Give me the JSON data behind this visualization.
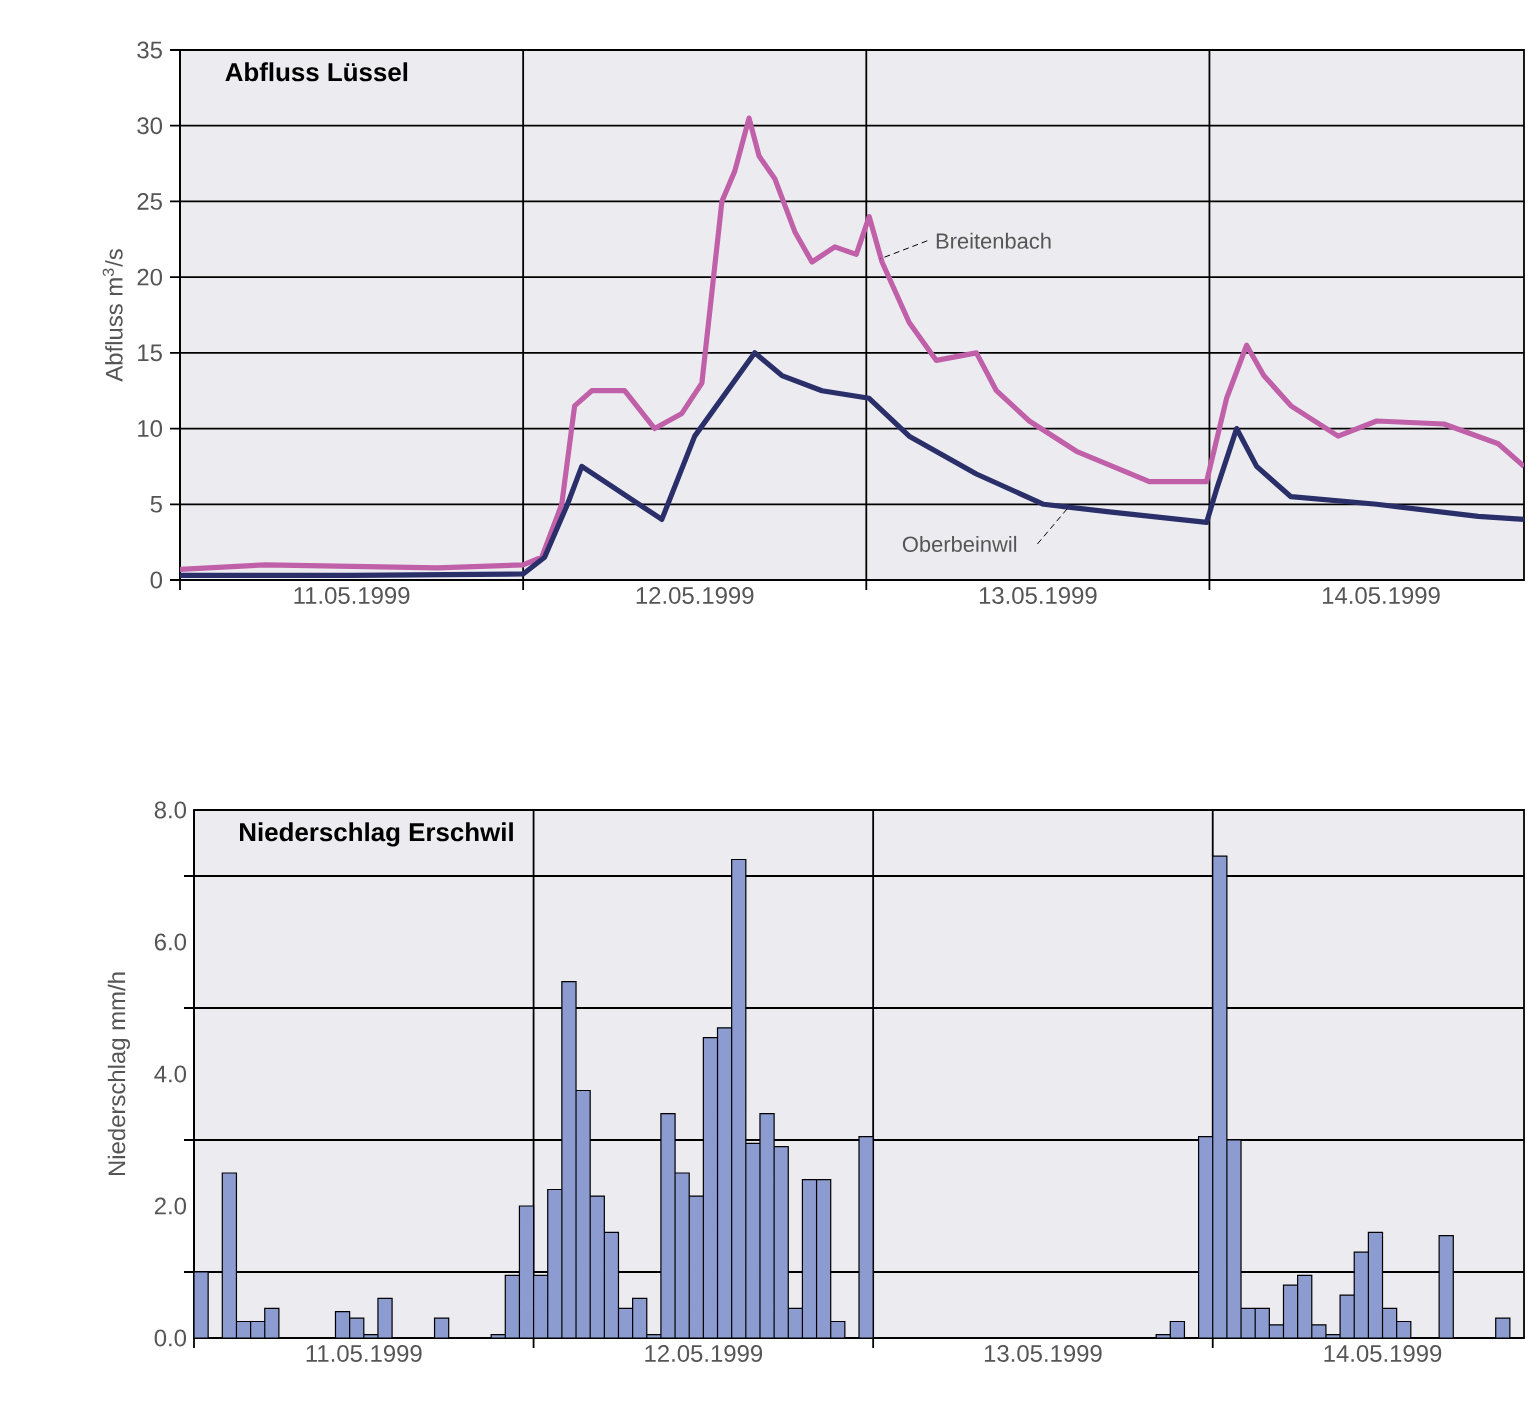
{
  "chart_data": [
    {
      "type": "line",
      "title": "Abfluss Lüssel",
      "ylabel": "Abfluss m$^{3}$/s",
      "xlim": [
        "1999-05-11T00:00",
        "1999-05-14T22:00"
      ],
      "ylim": [
        0,
        35
      ],
      "yticks": [
        0,
        5,
        10,
        15,
        20,
        25,
        30,
        35
      ],
      "grid": true,
      "line_style": "solid",
      "marker": "none",
      "xticks": [
        {
          "value": "1999-05-11T00:00",
          "label": null
        },
        {
          "value": "1999-05-11T12:00",
          "label": "11.05.1999"
        },
        {
          "value": "1999-05-12T00:00",
          "label": null
        },
        {
          "value": "1999-05-12T12:00",
          "label": "12.05.1999"
        },
        {
          "value": "1999-05-13T00:00",
          "label": null
        },
        {
          "value": "1999-05-13T12:00",
          "label": "13.05.1999"
        },
        {
          "value": "1999-05-14T00:00",
          "label": null
        },
        {
          "value": "1999-05-14T12:00",
          "label": "14.05.1999"
        }
      ],
      "series": [
        {
          "name": "Breitenbach",
          "color": "#c060a8",
          "x": [
            "1999-05-11T00:00",
            "1999-05-11T06:00",
            "1999-05-11T12:00",
            "1999-05-11T18:00",
            "1999-05-12T00:00",
            "1999-05-12T01:18",
            "1999-05-12T02:42",
            "1999-05-12T03:36",
            "1999-05-12T04:48",
            "1999-05-12T07:06",
            "1999-05-12T09:12",
            "1999-05-12T11:06",
            "1999-05-12T12:30",
            "1999-05-12T13:54",
            "1999-05-12T14:48",
            "1999-05-12T15:48",
            "1999-05-12T16:30",
            "1999-05-12T17:36",
            "1999-05-12T19:00",
            "1999-05-12T20:12",
            "1999-05-12T21:48",
            "1999-05-12T23:18",
            "1999-05-13T00:12",
            "1999-05-13T01:06",
            "1999-05-13T03:00",
            "1999-05-13T04:54",
            "1999-05-13T07:42",
            "1999-05-13T09:06",
            "1999-05-13T11:24",
            "1999-05-13T14:42",
            "1999-05-13T19:48",
            "1999-05-13T23:48",
            "1999-05-14T01:12",
            "1999-05-14T02:36",
            "1999-05-14T03:48",
            "1999-05-14T05:42",
            "1999-05-14T09:00",
            "1999-05-14T11:42",
            "1999-05-14T16:24",
            "1999-05-14T20:12",
            "1999-05-14T22:00"
          ],
          "values": [
            0.7,
            1.0,
            0.9,
            0.8,
            1.0,
            1.5,
            5,
            11.5,
            12.5,
            12.5,
            10,
            11,
            13,
            25,
            27,
            30.5,
            28,
            26.5,
            23,
            21,
            22,
            21.5,
            24,
            21,
            17,
            14.5,
            15,
            12.5,
            10.5,
            8.5,
            6.5,
            6.5,
            12,
            15.5,
            13.5,
            11.5,
            9.5,
            10.5,
            10.3,
            9,
            7.5
          ]
        },
        {
          "name": "Oberbeinwil",
          "color": "#2a2f6a",
          "x": [
            "1999-05-11T00:00",
            "1999-05-11T12:00",
            "1999-05-12T00:00",
            "1999-05-12T01:30",
            "1999-05-12T03:06",
            "1999-05-12T04:06",
            "1999-05-12T09:42",
            "1999-05-12T12:00",
            "1999-05-12T16:12",
            "1999-05-12T18:06",
            "1999-05-12T20:54",
            "1999-05-13T00:12",
            "1999-05-13T03:00",
            "1999-05-13T07:42",
            "1999-05-13T12:24",
            "1999-05-13T17:00",
            "1999-05-13T23:48",
            "1999-05-14T00:30",
            "1999-05-14T01:54",
            "1999-05-14T03:18",
            "1999-05-14T05:42",
            "1999-05-14T11:42",
            "1999-05-14T18:48",
            "1999-05-14T22:00"
          ],
          "values": [
            0.3,
            0.3,
            0.4,
            1.5,
            5,
            7.5,
            4,
            9.5,
            15,
            13.5,
            12.5,
            12,
            9.5,
            7,
            5,
            4.5,
            3.8,
            6,
            10,
            7.5,
            5.5,
            5,
            4.2,
            4
          ]
        }
      ]
    },
    {
      "type": "bar",
      "title": "Niederschlag Erschwil",
      "ylabel": "Niederschlag mm/h",
      "xlim": [
        "1999-05-11T00:00",
        "1999-05-14T22:00"
      ],
      "ylim": [
        0,
        8
      ],
      "grid": true,
      "color": "#8c9bd0",
      "yticks": [
        {
          "value": 0,
          "label": "0.0"
        },
        {
          "value": 1,
          "label": null
        },
        {
          "value": 2,
          "label": "2.0"
        },
        {
          "value": 3,
          "label": null
        },
        {
          "value": 4,
          "label": "4.0"
        },
        {
          "value": 5,
          "label": null
        },
        {
          "value": 6,
          "label": "6.0"
        },
        {
          "value": 7,
          "label": null
        },
        {
          "value": 8,
          "label": "8.0"
        }
      ],
      "xticks": [
        {
          "value": "1999-05-11T00:00",
          "label": null
        },
        {
          "value": "1999-05-11T12:00",
          "label": "11.05.1999"
        },
        {
          "value": "1999-05-12T00:00",
          "label": null
        },
        {
          "value": "1999-05-12T12:00",
          "label": "12.05.1999"
        },
        {
          "value": "1999-05-13T00:00",
          "label": null
        },
        {
          "value": "1999-05-13T12:00",
          "label": "13.05.1999"
        },
        {
          "value": "1999-05-14T00:00",
          "label": null
        },
        {
          "value": "1999-05-14T12:00",
          "label": "14.05.1999"
        }
      ],
      "x": [
        "1999-05-11T00:30",
        "1999-05-11T02:30",
        "1999-05-11T03:30",
        "1999-05-11T04:30",
        "1999-05-11T05:30",
        "1999-05-11T10:30",
        "1999-05-11T11:30",
        "1999-05-11T12:30",
        "1999-05-11T13:30",
        "1999-05-11T17:30",
        "1999-05-11T21:30",
        "1999-05-11T22:30",
        "1999-05-11T23:30",
        "1999-05-12T00:30",
        "1999-05-12T01:30",
        "1999-05-12T02:30",
        "1999-05-12T03:30",
        "1999-05-12T04:30",
        "1999-05-12T05:30",
        "1999-05-12T06:30",
        "1999-05-12T07:30",
        "1999-05-12T08:30",
        "1999-05-12T09:30",
        "1999-05-12T10:30",
        "1999-05-12T11:30",
        "1999-05-12T12:30",
        "1999-05-12T13:30",
        "1999-05-12T14:30",
        "1999-05-12T15:30",
        "1999-05-12T16:30",
        "1999-05-12T17:30",
        "1999-05-12T18:30",
        "1999-05-12T19:30",
        "1999-05-12T20:30",
        "1999-05-12T21:30",
        "1999-05-12T23:30",
        "1999-05-13T20:30",
        "1999-05-13T21:30",
        "1999-05-13T23:30",
        "1999-05-14T00:30",
        "1999-05-14T01:30",
        "1999-05-14T02:30",
        "1999-05-14T03:30",
        "1999-05-14T04:30",
        "1999-05-14T05:30",
        "1999-05-14T06:30",
        "1999-05-14T07:30",
        "1999-05-14T08:30",
        "1999-05-14T09:30",
        "1999-05-14T10:30",
        "1999-05-14T11:30",
        "1999-05-14T12:30",
        "1999-05-14T13:30",
        "1999-05-14T16:30",
        "1999-05-14T20:30"
      ],
      "values": [
        1.0,
        2.5,
        0.25,
        0.25,
        0.45,
        0.4,
        0.3,
        0.05,
        0.6,
        0.3,
        0.05,
        0.95,
        2.0,
        0.95,
        2.25,
        5.4,
        3.75,
        2.15,
        1.6,
        0.45,
        0.6,
        0.05,
        3.4,
        2.5,
        2.15,
        4.55,
        4.7,
        7.25,
        2.95,
        3.4,
        2.9,
        0.45,
        2.4,
        2.4,
        0.25,
        3.05,
        0.05,
        0.25,
        3.05,
        7.3,
        3.0,
        0.45,
        0.45,
        0.2,
        0.8,
        0.95,
        0.2,
        0.05,
        0.65,
        1.3,
        1.6,
        0.45,
        0.25,
        1.55,
        0.3
      ]
    }
  ]
}
